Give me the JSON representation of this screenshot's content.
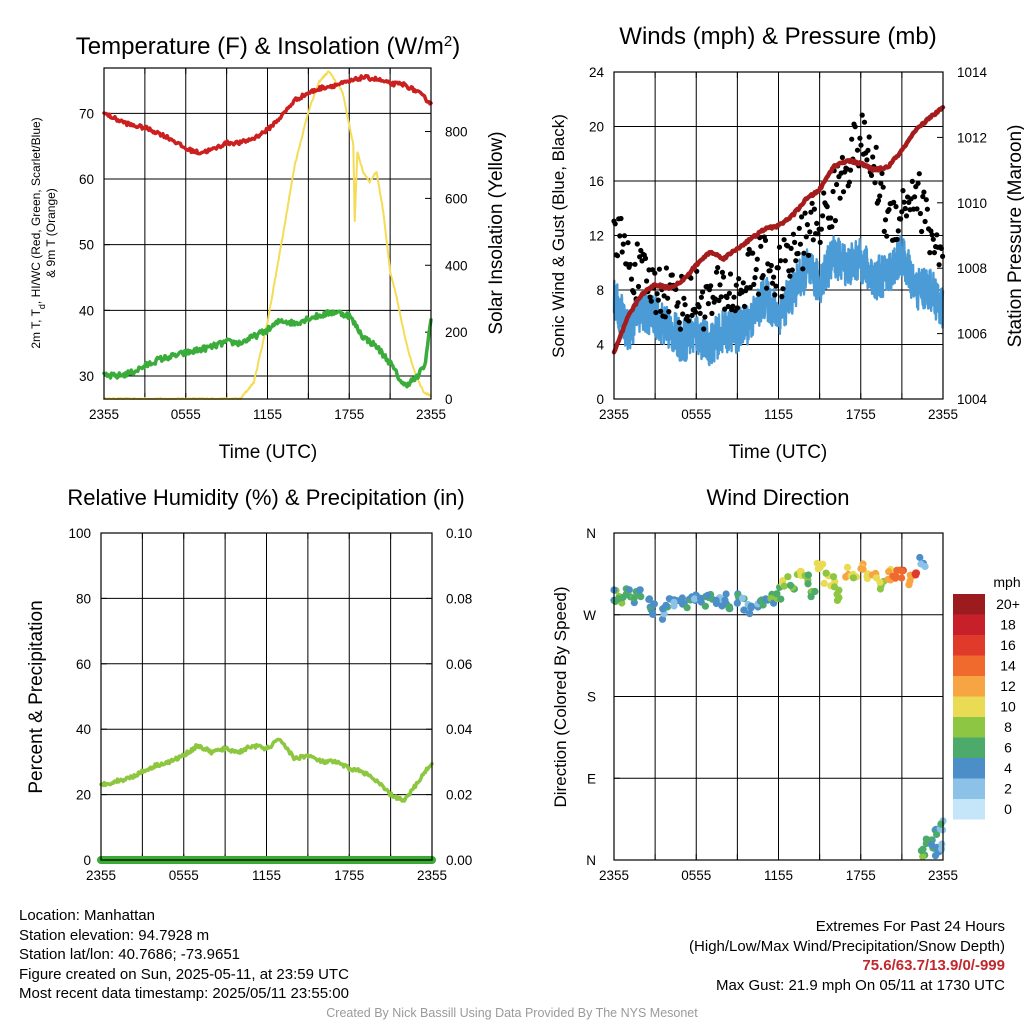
{
  "chart_data": [
    {
      "type": "line",
      "title": "Temperature (F) & Insolation (W/m²)",
      "xlabel": "Time (UTC)",
      "ylabel_left": "2m T, Td, HI/WC (Red, Green, Scarlet/Blue) & 9m T (Orange)",
      "ylabel_right": "Solar Insolation (Yellow)",
      "x_ticks": [
        "2355",
        "0555",
        "1155",
        "1755",
        "2355"
      ],
      "ylim_left": [
        26.5,
        76.9
      ],
      "ylim_right": [
        0,
        990
      ],
      "yticks_left": [
        30,
        40,
        50,
        60,
        70
      ],
      "yticks_right": [
        0,
        200,
        400,
        600,
        800
      ],
      "grid": true,
      "series": [
        {
          "name": "2m T",
          "axis": "left",
          "color": "#cc2020",
          "x": [
            0,
            1,
            2,
            3,
            4,
            5,
            6,
            7,
            8,
            9,
            10,
            11,
            12,
            13,
            14,
            15,
            16,
            17,
            18,
            19,
            20,
            21,
            22,
            23,
            24
          ],
          "y": [
            70,
            69,
            68.2,
            67.8,
            67,
            66,
            64.6,
            64,
            64.5,
            65.5,
            65.5,
            66.2,
            67.5,
            69.5,
            72,
            73.1,
            73.9,
            74.3,
            74.8,
            75.5,
            75.2,
            74.5,
            74.4,
            73.3,
            71.5
          ]
        },
        {
          "name": "2m Td",
          "axis": "left",
          "color": "#3aac3a",
          "x": [
            0,
            1,
            2,
            3,
            4,
            5,
            6,
            7,
            8,
            9,
            10,
            11,
            12,
            13,
            14,
            15,
            16,
            17,
            18,
            19,
            20,
            21,
            22,
            23,
            23.6,
            24
          ],
          "y": [
            30,
            30,
            30.5,
            31.5,
            32.5,
            33,
            33.5,
            34,
            34.5,
            35.2,
            35,
            36,
            37,
            38.5,
            38,
            38.8,
            39.3,
            39.8,
            39.2,
            36,
            34.5,
            32,
            28.5,
            29.8,
            32,
            39
          ]
        },
        {
          "name": "Solar Insolation",
          "axis": "right",
          "color": "#f5dc55",
          "x": [
            0,
            1,
            2,
            3,
            4,
            5,
            6,
            7,
            8,
            9,
            10,
            11,
            12,
            13,
            14,
            15,
            15.8,
            16.5,
            17.5,
            18.3,
            18.4,
            18.6,
            19,
            19.5,
            20,
            20.5,
            21,
            21.5,
            22,
            22.5,
            23,
            23.5,
            24
          ],
          "y": [
            0,
            0,
            0,
            0,
            0,
            0,
            0,
            0,
            0,
            0,
            0,
            50,
            230,
            460,
            700,
            860,
            950,
            980,
            920,
            760,
            530,
            740,
            680,
            650,
            680,
            560,
            380,
            300,
            200,
            120,
            60,
            20,
            10
          ]
        }
      ]
    },
    {
      "type": "line",
      "title": "Winds (mph) & Pressure (mb)",
      "xlabel": "Time (UTC)",
      "ylabel_left": "Sonic Wind & Gust (Blue, Black)",
      "ylabel_right": "Station Pressure (Maroon)",
      "x_ticks": [
        "2355",
        "0555",
        "1155",
        "1755",
        "2355"
      ],
      "ylim_left": [
        0,
        24
      ],
      "ylim_right": [
        1004,
        1014
      ],
      "yticks_left": [
        0,
        4,
        8,
        12,
        16,
        20,
        24
      ],
      "yticks_right": [
        1004,
        1006,
        1008,
        1010,
        1012,
        1014
      ],
      "grid": true,
      "series": [
        {
          "name": "Sonic Wind",
          "axis": "left",
          "color": "#4b9bd6",
          "x": [
            0,
            1,
            2,
            3,
            4,
            5,
            6,
            7,
            8,
            9,
            10,
            11,
            12,
            13,
            14,
            15,
            16,
            17,
            18,
            19,
            20,
            21,
            22,
            23,
            24
          ],
          "y": [
            7.5,
            5,
            6.5,
            6,
            5.2,
            4.2,
            4.8,
            4,
            5,
            5,
            5.8,
            7.5,
            6.2,
            7.8,
            9.5,
            8.5,
            10.5,
            9.8,
            10.2,
            8.8,
            9.2,
            10.6,
            8,
            8.2,
            6.5
          ]
        },
        {
          "name": "Gust",
          "axis": "left",
          "color": "#000000",
          "x": [
            0,
            1,
            2,
            3,
            4,
            5,
            6,
            7,
            8,
            9,
            10,
            11,
            12,
            13,
            14,
            15,
            16,
            17,
            18,
            19,
            20,
            21,
            22,
            23,
            24
          ],
          "y": [
            13,
            10,
            9,
            8,
            8,
            7,
            7.5,
            7,
            8,
            7.5,
            9.5,
            10,
            9,
            10.5,
            12,
            13,
            14.5,
            17.5,
            19,
            17,
            13,
            14,
            15.5,
            12.5,
            10
          ]
        },
        {
          "name": "Station Pressure",
          "axis": "right",
          "color": "#a51c1c",
          "x": [
            0,
            1,
            2,
            3,
            4,
            5,
            6,
            7,
            8,
            9,
            10,
            11,
            12,
            13,
            14,
            15,
            16,
            17,
            18,
            19,
            20,
            21,
            22,
            23,
            24
          ],
          "y": [
            1005.4,
            1006.5,
            1007.2,
            1007.5,
            1007.4,
            1007.6,
            1008.1,
            1008.5,
            1008.3,
            1008.6,
            1008.9,
            1009.2,
            1009.3,
            1009.6,
            1010.1,
            1010.4,
            1011.1,
            1011.3,
            1011.2,
            1011.0,
            1011.1,
            1011.6,
            1012.2,
            1012.6,
            1012.9
          ]
        }
      ]
    },
    {
      "type": "line",
      "title": "Relative Humidity (%) & Precipitation (in)",
      "xlabel": "",
      "ylabel_left": "Percent & Precipitation",
      "x_ticks": [
        "2355",
        "0555",
        "1155",
        "1755",
        "2355"
      ],
      "ylim_left": [
        0,
        100
      ],
      "ylim_right": [
        0,
        0.1
      ],
      "yticks_left": [
        0,
        20,
        40,
        60,
        80,
        100
      ],
      "yticks_right": [
        "0.00",
        "0.02",
        "0.04",
        "0.06",
        "0.08",
        "0.10"
      ],
      "grid": true,
      "series": [
        {
          "name": "Relative Humidity",
          "axis": "left",
          "color": "#8dc63f",
          "x": [
            0,
            1,
            2,
            3,
            4,
            5,
            6,
            7,
            8,
            9,
            10,
            11,
            12,
            13,
            14,
            15,
            16,
            17,
            18,
            19,
            20,
            21,
            22,
            23,
            24
          ],
          "y": [
            23,
            24,
            25,
            27,
            29,
            30,
            32,
            35,
            33,
            34,
            33,
            35,
            34,
            37,
            31,
            32,
            30,
            30,
            28,
            27,
            24,
            20,
            18,
            24,
            30
          ]
        },
        {
          "name": "Precipitation",
          "axis": "right",
          "color": "#3aaa35",
          "x": [
            0,
            24
          ],
          "y": [
            0,
            0
          ]
        }
      ]
    },
    {
      "type": "scatter",
      "title": "Wind Direction",
      "ylabel": "Direction (Colored By Speed)",
      "x_ticks": [
        "2355",
        "0555",
        "1155",
        "1755",
        "2355"
      ],
      "y_ticks": [
        "N",
        "E",
        "S",
        "W",
        "N"
      ],
      "ylim": [
        0,
        360
      ],
      "grid": true,
      "legend": {
        "title": "mph",
        "position": "right",
        "labels": [
          "20+",
          "18",
          "16",
          "14",
          "12",
          "10",
          "8",
          "6",
          "4",
          "2",
          "0"
        ],
        "colors": [
          "#9b1b1e",
          "#c8202a",
          "#e03a2a",
          "#f06a2d",
          "#f7a442",
          "#eadb54",
          "#8cc643",
          "#4caa6a",
          "#4b8ec8",
          "#8cc2e8",
          "#c4e6f8"
        ]
      },
      "points": [
        {
          "x": 0,
          "dir": 291,
          "speed": 6
        },
        {
          "x": 0.5,
          "dir": 287,
          "speed": 7
        },
        {
          "x": 1,
          "dir": 293,
          "speed": 5
        },
        {
          "x": 1.5,
          "dir": 289,
          "speed": 6
        },
        {
          "x": 2,
          "dir": 296,
          "speed": 5
        },
        {
          "x": 2.5,
          "dir": 281,
          "speed": 4
        },
        {
          "x": 3,
          "dir": 275,
          "speed": 4
        },
        {
          "x": 3.5,
          "dir": 272,
          "speed": 3
        },
        {
          "x": 4,
          "dir": 282,
          "speed": 4
        },
        {
          "x": 4.5,
          "dir": 285,
          "speed": 4
        },
        {
          "x": 5,
          "dir": 288,
          "speed": 4
        },
        {
          "x": 5.5,
          "dir": 284,
          "speed": 5
        },
        {
          "x": 6,
          "dir": 286,
          "speed": 4
        },
        {
          "x": 6.5,
          "dir": 283,
          "speed": 4
        },
        {
          "x": 7,
          "dir": 288,
          "speed": 5
        },
        {
          "x": 7.5,
          "dir": 285,
          "speed": 4
        },
        {
          "x": 8,
          "dir": 286,
          "speed": 4
        },
        {
          "x": 8.5,
          "dir": 283,
          "speed": 4
        },
        {
          "x": 9,
          "dir": 287,
          "speed": 5
        },
        {
          "x": 9.5,
          "dir": 282,
          "speed": 4
        },
        {
          "x": 10,
          "dir": 276,
          "speed": 3
        },
        {
          "x": 10.5,
          "dir": 285,
          "speed": 4
        },
        {
          "x": 11,
          "dir": 281,
          "speed": 5
        },
        {
          "x": 11.5,
          "dir": 288,
          "speed": 6
        },
        {
          "x": 12,
          "dir": 294,
          "speed": 7
        },
        {
          "x": 12.5,
          "dir": 306,
          "speed": 8
        },
        {
          "x": 13,
          "dir": 301,
          "speed": 7
        },
        {
          "x": 13.5,
          "dir": 316,
          "speed": 9
        },
        {
          "x": 14,
          "dir": 309,
          "speed": 8
        },
        {
          "x": 14.5,
          "dir": 296,
          "speed": 7
        },
        {
          "x": 15,
          "dir": 320,
          "speed": 10
        },
        {
          "x": 15.5,
          "dir": 311,
          "speed": 9
        },
        {
          "x": 16,
          "dir": 305,
          "speed": 8
        },
        {
          "x": 16.5,
          "dir": 292,
          "speed": 7
        },
        {
          "x": 17,
          "dir": 318,
          "speed": 11
        },
        {
          "x": 17.5,
          "dir": 310,
          "speed": 9
        },
        {
          "x": 18,
          "dir": 322,
          "speed": 12
        },
        {
          "x": 18.5,
          "dir": 308,
          "speed": 10
        },
        {
          "x": 19,
          "dir": 316,
          "speed": 11
        },
        {
          "x": 19.5,
          "dir": 300,
          "speed": 8
        },
        {
          "x": 20,
          "dir": 315,
          "speed": 10
        },
        {
          "x": 20.5,
          "dir": 312,
          "speed": 13
        },
        {
          "x": 21,
          "dir": 317,
          "speed": 15
        },
        {
          "x": 21.5,
          "dir": 309,
          "speed": 11
        },
        {
          "x": 22,
          "dir": 320,
          "speed": 16
        },
        {
          "x": 22.5,
          "dir": 328,
          "speed": 4
        },
        {
          "x": 22.6,
          "dir": 5,
          "speed": 6
        },
        {
          "x": 23,
          "dir": 18,
          "speed": 5
        },
        {
          "x": 23.3,
          "dir": 10,
          "speed": 4
        },
        {
          "x": 23.5,
          "dir": 28,
          "speed": 6
        },
        {
          "x": 23.7,
          "dir": 12,
          "speed": 3
        },
        {
          "x": 24,
          "dir": 37,
          "speed": 4
        }
      ]
    }
  ],
  "footer": {
    "location": "Location: Manhattan",
    "elevation": "Station elevation: 94.7928 m",
    "latlon": "Station lat/lon: 40.7686; -73.9651",
    "created": "Figure created on Sun, 2025-05-11, at 23:59 UTC",
    "recent": "Most recent data timestamp: 2025/05/11 23:55:00",
    "extremes_title": "Extremes For Past 24 Hours",
    "extremes_subtitle": "(High/Low/Max Wind/Precipitation/Snow Depth)",
    "extremes_values": "75.6/63.7/13.9/0/-999",
    "max_gust": "Max Gust: 21.9 mph On 05/11 at 1730 UTC",
    "credit": "Created By Nick Bassill Using Data Provided By The NYS Mesonet"
  }
}
